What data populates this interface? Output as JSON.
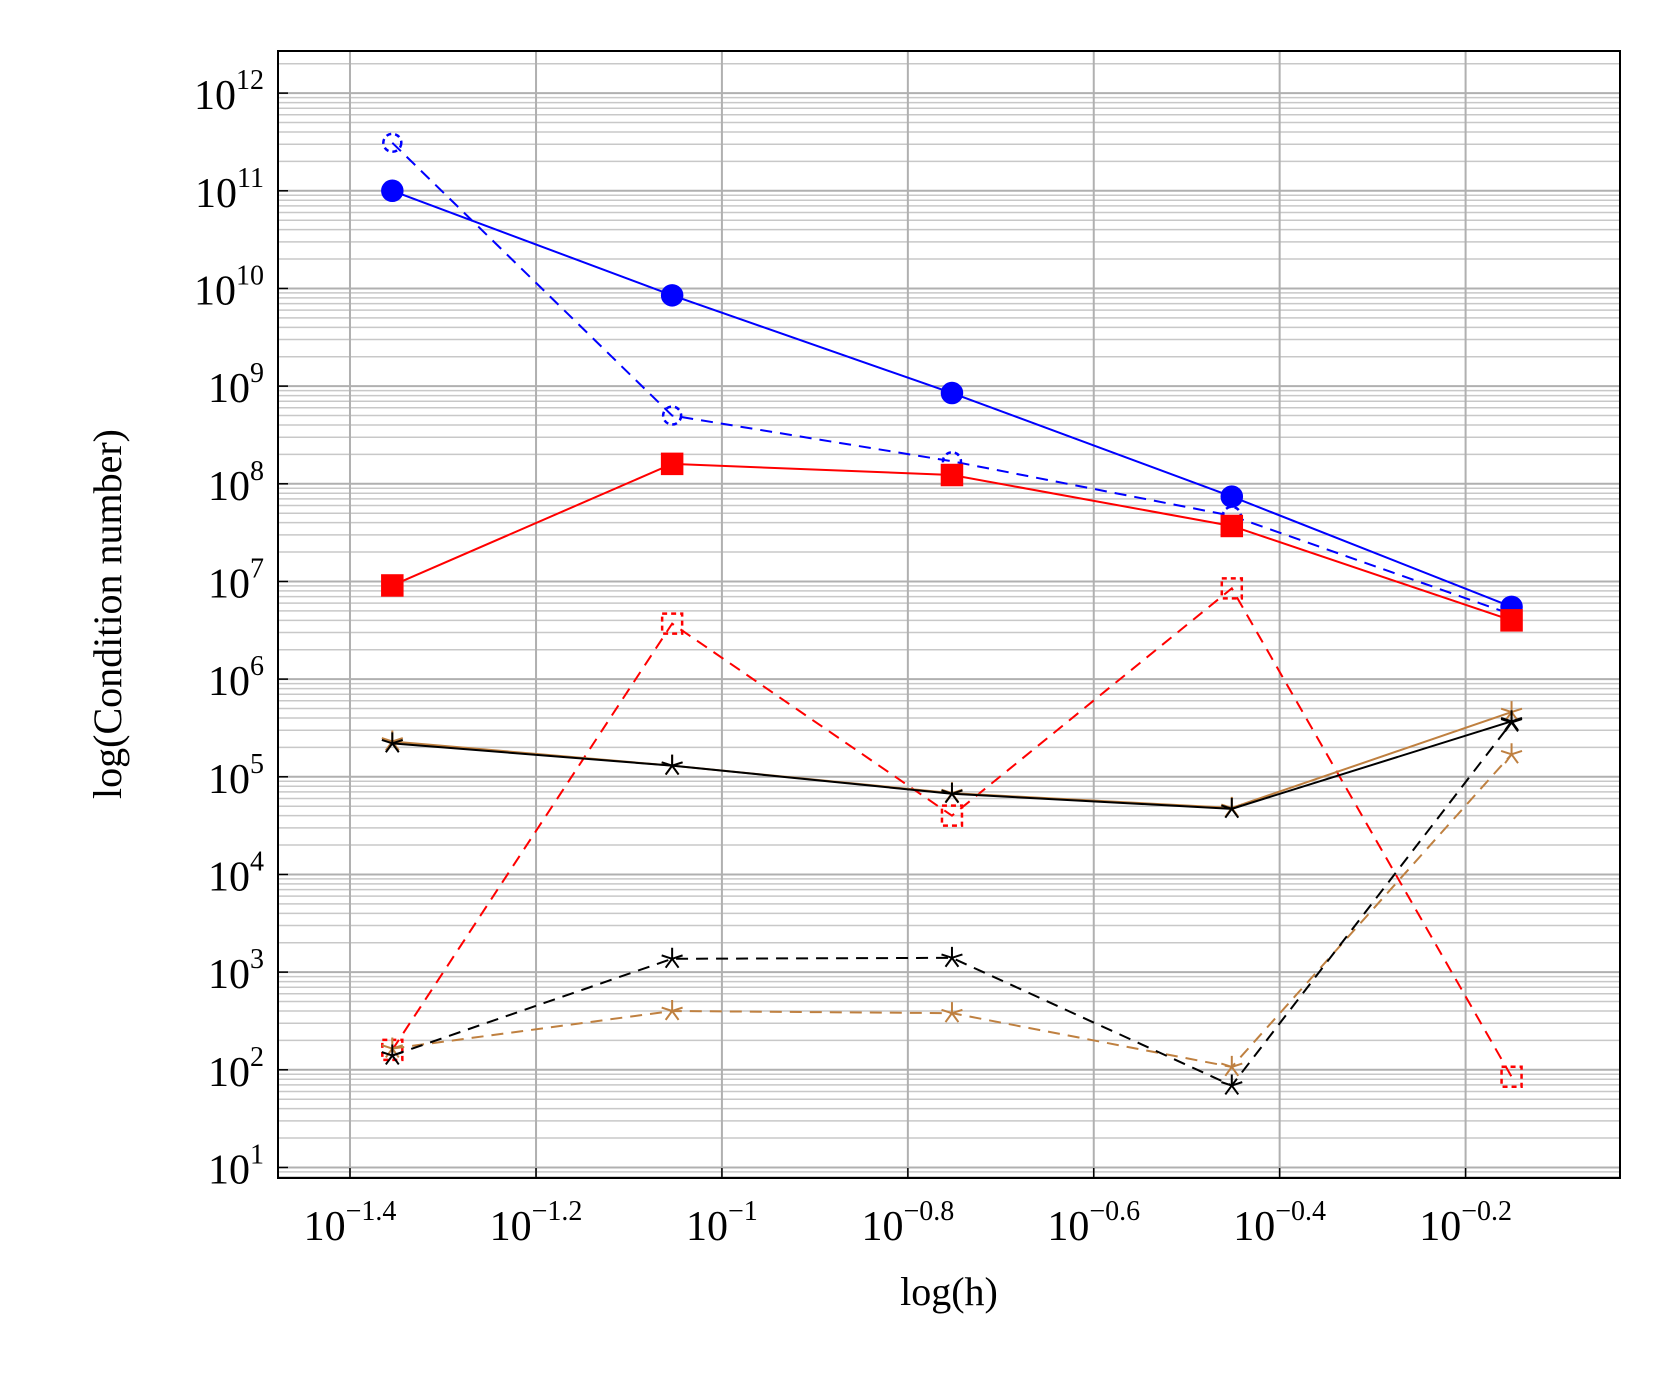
{
  "chart_data": {
    "type": "line",
    "xlabel": "log(h)",
    "ylabel": "log(Condition number)",
    "xscale": "log",
    "yscale": "log",
    "grid": true,
    "minor_grid_y": true,
    "x": [
      0.0442,
      0.0884,
      0.1768,
      0.3536,
      0.7071
    ],
    "xlim": [
      0.0333,
      0.925
    ],
    "xticks": [
      {
        "value": 0.0398,
        "label": "10",
        "exponent": "−1.4"
      },
      {
        "value": 0.0631,
        "label": "10",
        "exponent": "−1.2"
      },
      {
        "value": 0.1,
        "label": "10",
        "exponent": "−1"
      },
      {
        "value": 0.1585,
        "label": "10",
        "exponent": "−0.8"
      },
      {
        "value": 0.2512,
        "label": "10",
        "exponent": "−0.6"
      },
      {
        "value": 0.3981,
        "label": "10",
        "exponent": "−0.4"
      },
      {
        "value": 0.631,
        "label": "10",
        "exponent": "−0.2"
      }
    ],
    "ylim": [
      7.8,
      2700000000000.0
    ],
    "yticks": [
      {
        "value": 10,
        "label": "10",
        "exponent": "1"
      },
      {
        "value": 100,
        "label": "10",
        "exponent": "2"
      },
      {
        "value": 1000,
        "label": "10",
        "exponent": "3"
      },
      {
        "value": 10000,
        "label": "10",
        "exponent": "4"
      },
      {
        "value": 100000,
        "label": "10",
        "exponent": "5"
      },
      {
        "value": 1000000,
        "label": "10",
        "exponent": "6"
      },
      {
        "value": 10000000,
        "label": "10",
        "exponent": "7"
      },
      {
        "value": 100000000,
        "label": "10",
        "exponent": "8"
      },
      {
        "value": 1000000000,
        "label": "10",
        "exponent": "9"
      },
      {
        "value": 10000000000,
        "label": "10",
        "exponent": "10"
      },
      {
        "value": 100000000000,
        "label": "10",
        "exponent": "11"
      },
      {
        "value": 1000000000000,
        "label": "10",
        "exponent": "12"
      }
    ],
    "series": [
      {
        "color": "#0000ff",
        "dashed": false,
        "marker": "circle",
        "filled": true,
        "values": [
          100000000000.0,
          8500000000.0,
          850000000.0,
          74000000.0,
          5500000.0
        ]
      },
      {
        "color": "#0000ff",
        "dashed": true,
        "marker": "circle",
        "filled": false,
        "values": [
          310000000000.0,
          500000000.0,
          170000000.0,
          47000000.0,
          4600000.0
        ]
      },
      {
        "color": "#ff0000",
        "dashed": false,
        "marker": "square",
        "filled": true,
        "values": [
          9100000.0,
          160000000.0,
          123000000.0,
          37000000.0,
          4000000.0
        ]
      },
      {
        "color": "#ff0000",
        "dashed": true,
        "marker": "square",
        "filled": false,
        "values": [
          160,
          3700000.0,
          40000.0,
          8500000.0,
          85
        ]
      },
      {
        "color": "#bf8040",
        "dashed": false,
        "marker": "star",
        "filled": true,
        "values": [
          230000.0,
          130000.0,
          68000.0,
          48000.0,
          460000.0
        ]
      },
      {
        "color": "#000000",
        "dashed": false,
        "marker": "star",
        "filled": true,
        "values": [
          220000.0,
          130000.0,
          67000.0,
          47000.0,
          370000.0
        ]
      },
      {
        "color": "#bf8040",
        "dashed": true,
        "marker": "star",
        "filled": false,
        "values": [
          165,
          400,
          380,
          107,
          170000.0
        ]
      },
      {
        "color": "#000000",
        "dashed": true,
        "marker": "star",
        "filled": false,
        "values": [
          140,
          1370,
          1400,
          69,
          360000.0
        ]
      }
    ]
  }
}
